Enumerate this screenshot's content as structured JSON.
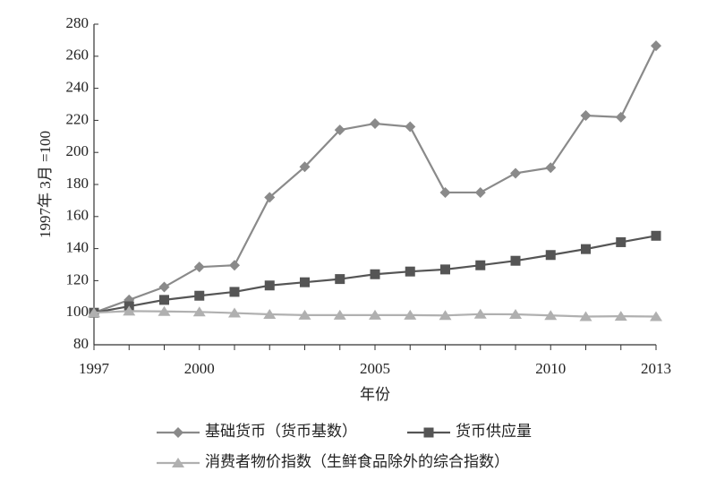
{
  "chart_data": {
    "type": "line",
    "y_label": "1997年 3月 =100",
    "x_label": "年份",
    "x": [
      1997,
      1998,
      1999,
      2000,
      2001,
      2002,
      2003,
      2004,
      2005,
      2006,
      2007,
      2008,
      2009,
      2010,
      2011,
      2012,
      2013
    ],
    "xlim": [
      1997,
      2013
    ],
    "xticks": [
      1997,
      2000,
      2005,
      2010,
      2013
    ],
    "ylim": [
      80,
      280
    ],
    "yticks": [
      80,
      100,
      120,
      140,
      160,
      180,
      200,
      220,
      240,
      260,
      280
    ],
    "series": [
      {
        "name": "基础货币（货币基数）",
        "color": "#8a8a8a",
        "marker": "diamond",
        "values": [
          100,
          108,
          116,
          128.5,
          129.6,
          172,
          191,
          214,
          218,
          216,
          175,
          175,
          187,
          190.5,
          223,
          222,
          266.5
        ]
      },
      {
        "name": "货币供应量",
        "color": "#555555",
        "marker": "square",
        "values": [
          100,
          104,
          108,
          110.6,
          113,
          117,
          119,
          121,
          124,
          125.7,
          127,
          129.6,
          132.4,
          136,
          139.7,
          144,
          148
        ]
      },
      {
        "name": "消费者物价指数（生鲜食品除外的综合指数）",
        "color": "#b0b0b0",
        "marker": "triangle",
        "values": [
          100,
          101,
          100.8,
          100.5,
          99.8,
          99,
          98.5,
          98.5,
          98.5,
          98.5,
          98.3,
          99.1,
          99,
          98.3,
          97.6,
          97.8,
          97.6
        ]
      }
    ]
  }
}
